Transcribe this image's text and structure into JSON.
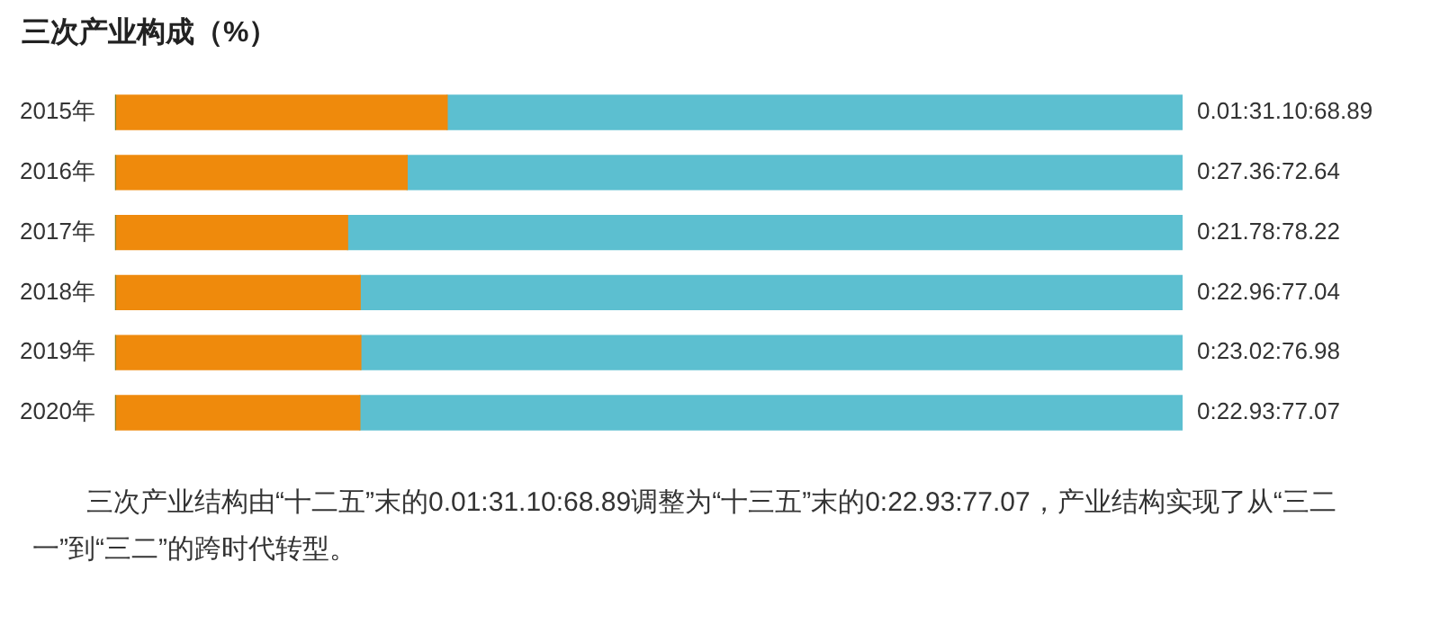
{
  "chart_data": {
    "type": "bar",
    "orientation": "horizontal",
    "stacked": true,
    "title": "三次产业构成（%）",
    "categories": [
      "2015年",
      "2016年",
      "2017年",
      "2018年",
      "2019年",
      "2020年"
    ],
    "xlim": [
      0,
      100
    ],
    "tick_labels": "y",
    "series": [
      {
        "color": "#2e7d32",
        "values": [
          0.01,
          0,
          0,
          0,
          0,
          0
        ]
      },
      {
        "color": "#ef8a0c",
        "values": [
          31.1,
          27.36,
          21.78,
          22.96,
          23.02,
          22.93
        ]
      },
      {
        "color": "#5cbfd0",
        "values": [
          68.89,
          72.64,
          78.22,
          77.04,
          76.98,
          77.07
        ],
        "value_labels": [
          "0.01:31.10:68.89",
          "0:27.36:72.64",
          "0:21.78:78.22",
          "0:22.96:77.04",
          "0:23.02:76.98",
          "0:22.93:77.07"
        ]
      }
    ],
    "annotations": [
      "三次产业结构由“十二五”末的0.01:31.10:68.89调整为“十三五”末的0:22.93:77.07，产业结构实现了从“三二一”到“三二”的跨时代转型。"
    ]
  }
}
